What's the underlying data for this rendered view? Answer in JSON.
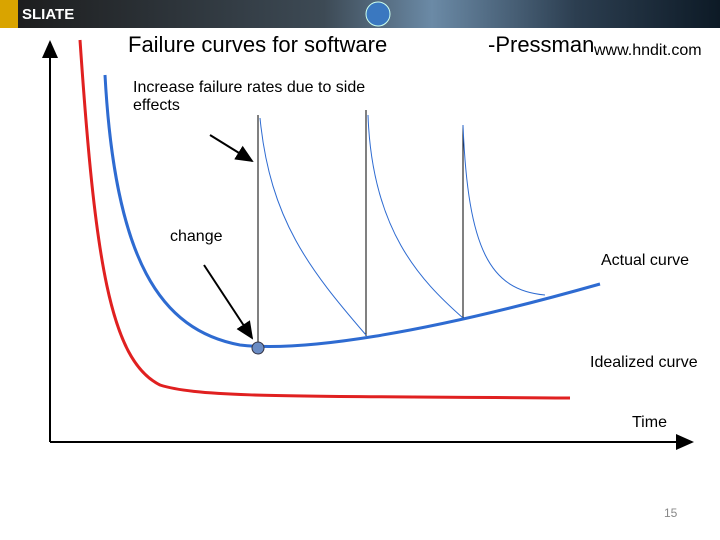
{
  "header": {
    "logo": "SLIATE",
    "title": "Failure curves for software",
    "author": "-Pressman",
    "website": "www.hndit.com"
  },
  "labels": {
    "side_effects": "Increase failure rates due to side effects",
    "change": "change",
    "actual": "Actual curve",
    "idealized": "Idealized curve",
    "time": "Time"
  },
  "footer": {
    "page": "15"
  }
}
